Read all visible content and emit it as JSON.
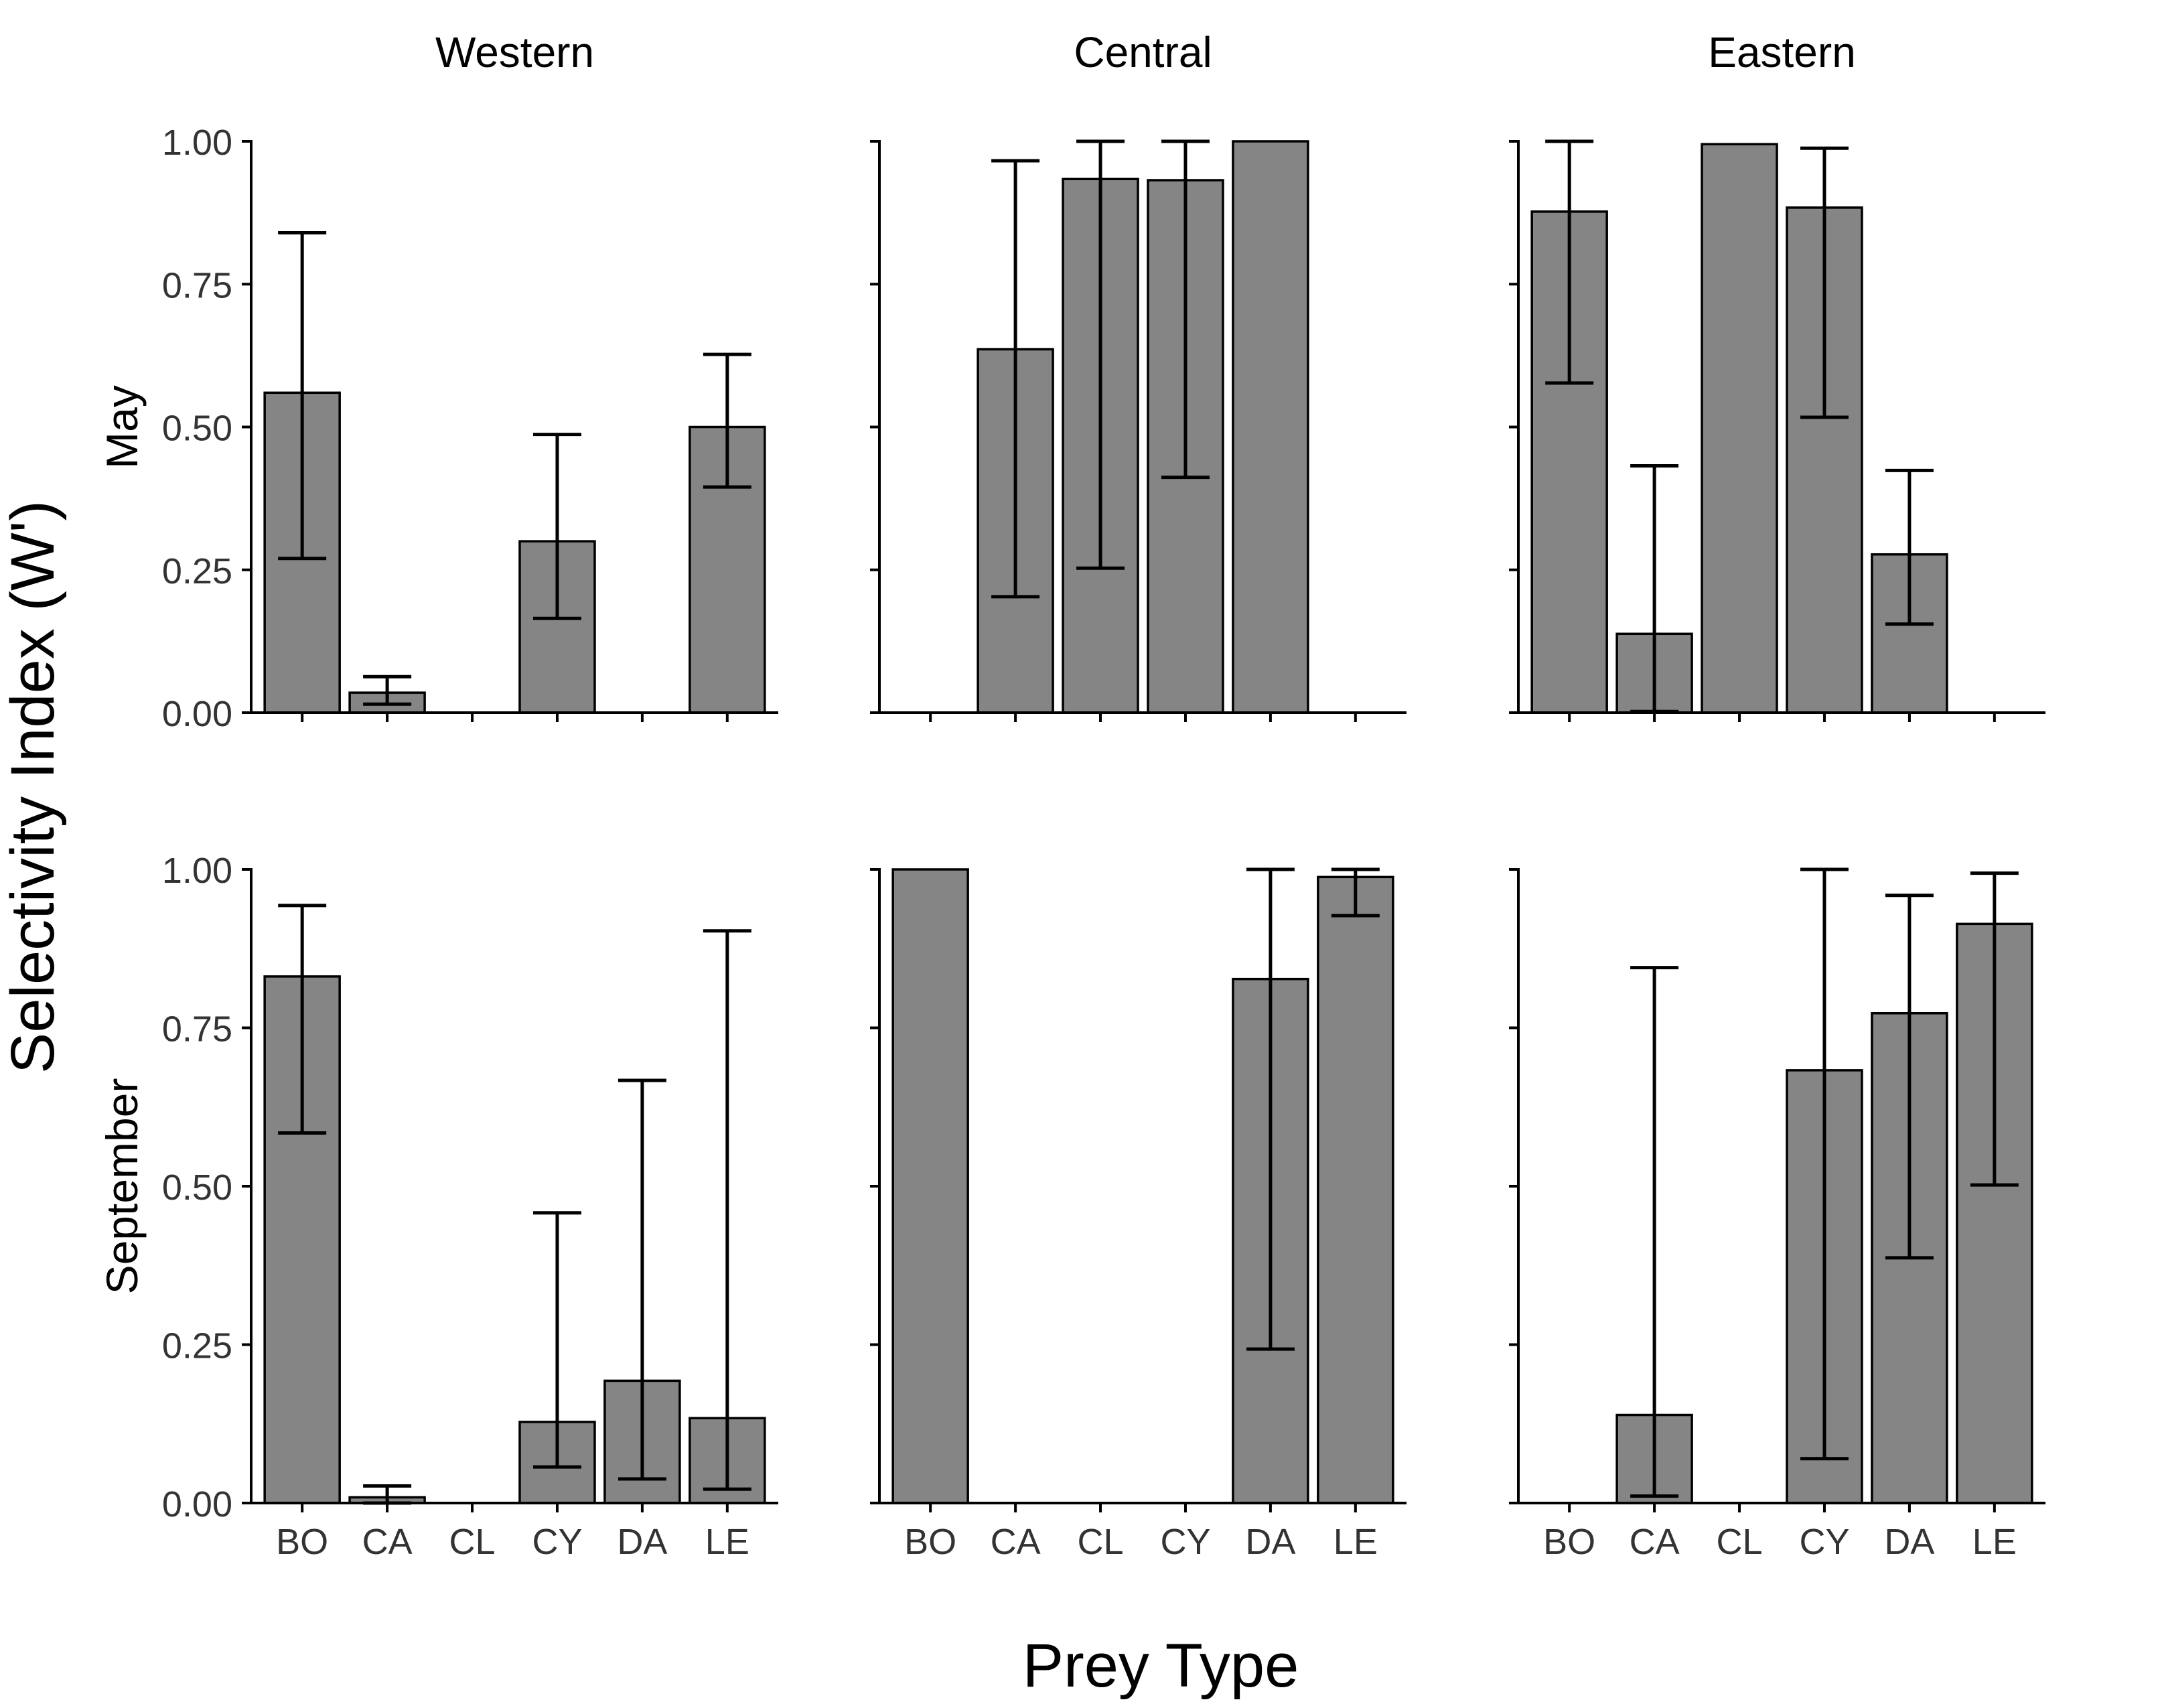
{
  "figure": {
    "ylabel": "Selectivity Index (W')",
    "xlabel": "Prey Type",
    "bar_fill": "#858585",
    "bar_stroke": "#000000"
  },
  "chart_data": {
    "type": "bar",
    "layout": "facet-grid",
    "columns": [
      "Western",
      "Central",
      "Eastern"
    ],
    "rows": [
      "May",
      "September"
    ],
    "categories": [
      "BO",
      "CA",
      "CL",
      "CY",
      "DA",
      "LE"
    ],
    "ylim": [
      0,
      1
    ],
    "yticks": [
      "0.00",
      "0.25",
      "0.50",
      "0.75",
      "1.00"
    ],
    "grid": false,
    "error_bars": true,
    "panels": [
      {
        "row": "May",
        "column": "Western",
        "values": [
          0.56,
          0.035,
          0.0,
          0.3,
          0.0,
          0.5
        ],
        "err_low": [
          0.27,
          0.015,
          null,
          0.165,
          null,
          0.395
        ],
        "err_high": [
          0.84,
          0.063,
          null,
          0.487,
          null,
          0.627
        ]
      },
      {
        "row": "May",
        "column": "Central",
        "values": [
          0.0,
          0.636,
          0.934,
          0.932,
          1.0,
          0.0
        ],
        "err_low": [
          null,
          0.203,
          0.253,
          0.412,
          null,
          null
        ],
        "err_high": [
          null,
          0.966,
          1.0,
          1.0,
          null,
          null
        ]
      },
      {
        "row": "May",
        "column": "Eastern",
        "values": [
          0.877,
          0.138,
          0.995,
          0.884,
          0.277,
          0.0
        ],
        "err_low": [
          0.577,
          0.002,
          null,
          0.517,
          0.155,
          null
        ],
        "err_high": [
          1.0,
          0.432,
          null,
          0.988,
          0.424,
          null
        ]
      },
      {
        "row": "September",
        "column": "Western",
        "values": [
          0.831,
          0.009,
          0.0,
          0.128,
          0.193,
          0.134
        ],
        "err_low": [
          0.584,
          0.0,
          null,
          0.057,
          0.038,
          0.022
        ],
        "err_high": [
          0.943,
          0.027,
          null,
          0.458,
          0.667,
          0.903
        ]
      },
      {
        "row": "September",
        "column": "Central",
        "values": [
          1.0,
          0.0,
          0.0,
          0.0,
          0.827,
          0.988
        ],
        "err_low": [
          null,
          null,
          null,
          null,
          0.243,
          0.927
        ],
        "err_high": [
          null,
          null,
          null,
          null,
          1.0,
          1.0
        ]
      },
      {
        "row": "September",
        "column": "Eastern",
        "values": [
          0.0,
          0.139,
          0.0,
          0.683,
          0.773,
          0.914
        ],
        "err_low": [
          null,
          0.011,
          null,
          0.07,
          0.387,
          0.502
        ],
        "err_high": [
          null,
          0.845,
          null,
          1.0,
          0.959,
          0.994
        ]
      }
    ]
  }
}
